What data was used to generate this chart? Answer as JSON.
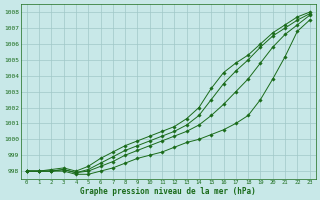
{
  "title": "Graphe pression niveau de la mer (hPa)",
  "bg_color": "#c8e8e8",
  "grid_color": "#a0c8c8",
  "line_color": "#1a6b1a",
  "xlim_min": -0.5,
  "xlim_max": 23.5,
  "ylim": [
    997.5,
    1008.5
  ],
  "yticks": [
    998,
    999,
    1000,
    1001,
    1002,
    1003,
    1004,
    1005,
    1006,
    1007,
    1008
  ],
  "xticks": [
    0,
    1,
    2,
    3,
    4,
    5,
    6,
    7,
    8,
    9,
    10,
    11,
    12,
    13,
    14,
    15,
    16,
    17,
    18,
    19,
    20,
    21,
    22,
    23
  ],
  "series": [
    [
      998.0,
      998.0,
      998.0,
      998.0,
      997.8,
      997.8,
      998.0,
      998.2,
      998.5,
      998.8,
      999.0,
      999.2,
      999.5,
      999.8,
      1000.0,
      1000.3,
      1000.6,
      1001.0,
      1001.5,
      1002.5,
      1003.8,
      1005.2,
      1006.8,
      1007.5
    ],
    [
      998.0,
      998.0,
      998.0,
      998.1,
      997.9,
      998.0,
      998.3,
      998.6,
      999.0,
      999.3,
      999.6,
      999.9,
      1000.2,
      1000.5,
      1000.9,
      1001.5,
      1002.2,
      1003.0,
      1003.8,
      1004.8,
      1005.8,
      1006.6,
      1007.2,
      1007.8
    ],
    [
      998.0,
      998.0,
      998.0,
      998.1,
      997.9,
      998.1,
      998.5,
      998.9,
      999.3,
      999.6,
      999.9,
      1000.2,
      1000.5,
      1000.9,
      1001.5,
      1002.5,
      1003.5,
      1004.3,
      1005.0,
      1005.8,
      1006.5,
      1007.0,
      1007.5,
      1007.9
    ],
    [
      998.0,
      998.0,
      998.1,
      998.2,
      998.0,
      998.3,
      998.8,
      999.2,
      999.6,
      999.9,
      1000.2,
      1000.5,
      1000.8,
      1001.3,
      1002.0,
      1003.2,
      1004.2,
      1004.8,
      1005.3,
      1006.0,
      1006.7,
      1007.2,
      1007.7,
      1008.0
    ]
  ]
}
